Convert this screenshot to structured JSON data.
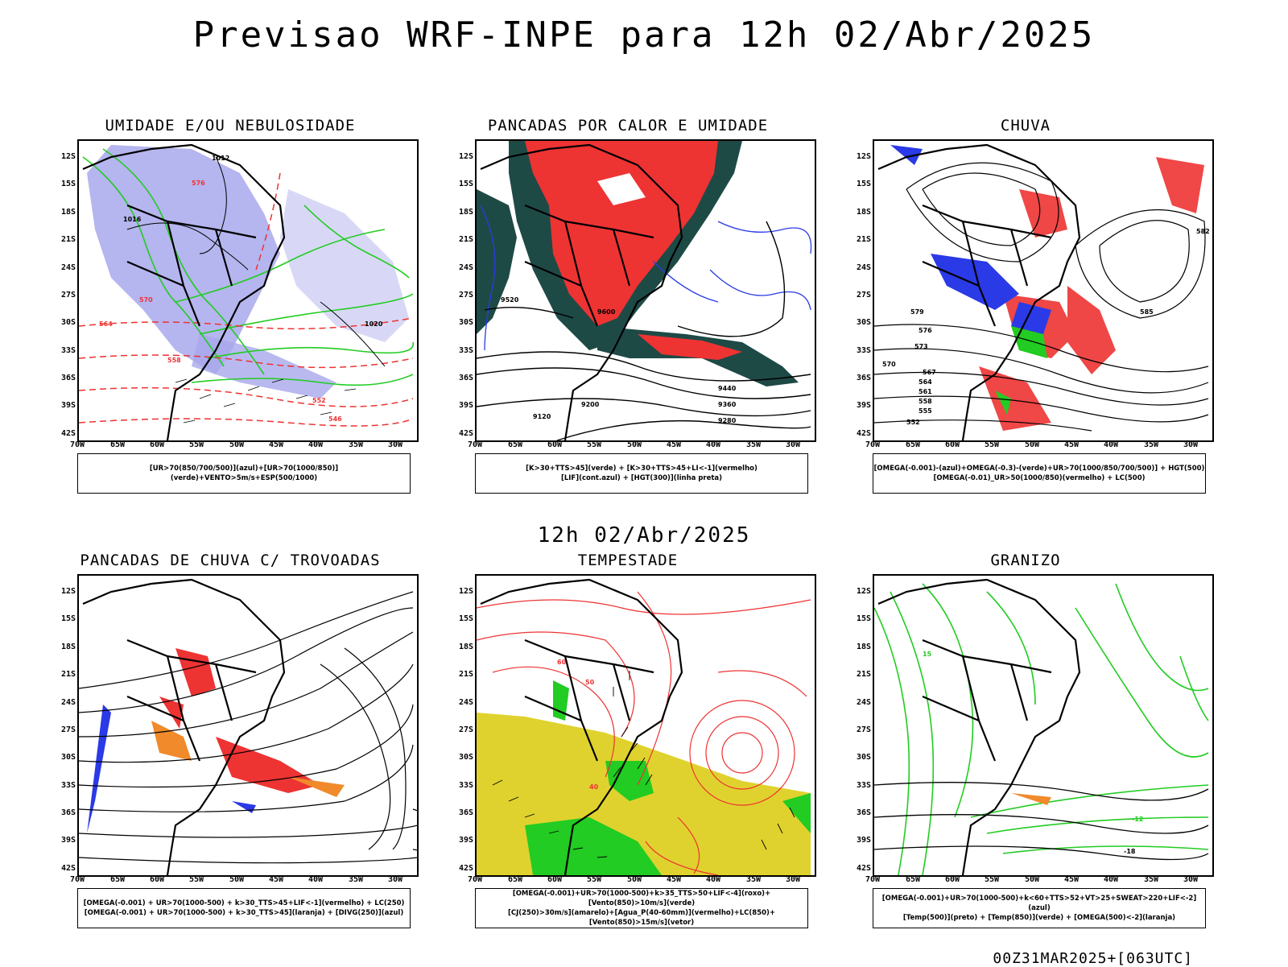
{
  "header": {
    "title": "Previsao WRF-INPE  para 12h 02/Abr/2025",
    "subtitle": "12h 02/Abr/2025",
    "footer": "00Z31MAR2025+[063UTC]"
  },
  "axes": {
    "lat_labels": [
      "12S",
      "15S",
      "18S",
      "21S",
      "24S",
      "27S",
      "30S",
      "33S",
      "36S",
      "39S",
      "42S"
    ],
    "lon_labels": [
      "70W",
      "65W",
      "60W",
      "55W",
      "50W",
      "45W",
      "40W",
      "35W",
      "30W"
    ]
  },
  "panels": [
    {
      "id": "umidade",
      "title": "UMIDADE E/OU NEBULOSIDADE",
      "legend": [
        "[UR>70(850/700/500)](azul)+[UR>70(1000/850)](verde)+VENTO>5m/s+ESP(500/1000)"
      ],
      "contour_labels": [
        "1012",
        "1016",
        "1020",
        "576",
        "570",
        "564",
        "558",
        "552",
        "546"
      ]
    },
    {
      "id": "pancadas-calor",
      "title": "PANCADAS POR CALOR E UMIDADE",
      "legend": [
        "[K>30+TTS>45](verde) + [K>30+TTS>45+LI<-1](vermelho)",
        "[LIF](cont.azul) + [HGT(300)](linha preta)"
      ],
      "contour_labels": [
        "9600",
        "9520",
        "9440",
        "9360",
        "9280",
        "9200",
        "9120"
      ]
    },
    {
      "id": "chuva",
      "title": "CHUVA",
      "legend": [
        "[OMEGA(-0.001)-(azul)+OMEGA(-0.3)-(verde)+UR>70(1000/850/700/500)] + HGT(500)",
        "[OMEGA(-0.01)_UR>50(1000/850)(vermelho) + LC(500)"
      ],
      "contour_labels": [
        "585",
        "582",
        "579",
        "576",
        "573",
        "570",
        "567",
        "564",
        "561",
        "558",
        "555",
        "552"
      ]
    },
    {
      "id": "pancadas-trovoadas",
      "title": "PANCADAS DE CHUVA C/ TROVOADAS",
      "legend": [
        "[OMEGA(-0.001) + UR>70(1000-500) + k>30_TTS>45+LIF<-1](vermelho) + LC(250)",
        "[OMEGA(-0.001) + UR>70(1000-500) + k>30_TTS>45](laranja) + [DIVG(250)](azul)"
      ],
      "contour_labels": []
    },
    {
      "id": "tempestade",
      "title": "TEMPESTADE",
      "legend": [
        "[OMEGA(-0.001)+UR>70(1000-500)+k>35_TTS>50+LIF<-4](roxo)+[Vento(850)>10m/s](verde)",
        "[CJ(250)>30m/s](amarelo)+[Agua_P(40-60mm)](vermelho)+LC(850)+[Vento(850)>15m/s](vetor)"
      ],
      "contour_labels": [
        "60",
        "50",
        "40"
      ]
    },
    {
      "id": "granizo",
      "title": "GRANIZO",
      "legend": [
        "[OMEGA(-0.001)+UR>70(1000-500)+k<60+TTS>52+VT>25+SWEAT>220+LIF<-2](azul)",
        "[Temp(500)](preto) + [Temp(850)](verde) + [OMEGA(500)<-2](laranja)"
      ],
      "contour_labels": [
        "-18",
        "-12",
        "15"
      ]
    }
  ],
  "colors": {
    "frame": "#000000",
    "humidity_blue": "#9c9ce8",
    "green": "#22cc22",
    "red": "#ee3333",
    "dark_teal": "#1e4a46",
    "blue": "#2a3ae6",
    "orange": "#f08a2a",
    "yellow": "#e0d22e"
  }
}
